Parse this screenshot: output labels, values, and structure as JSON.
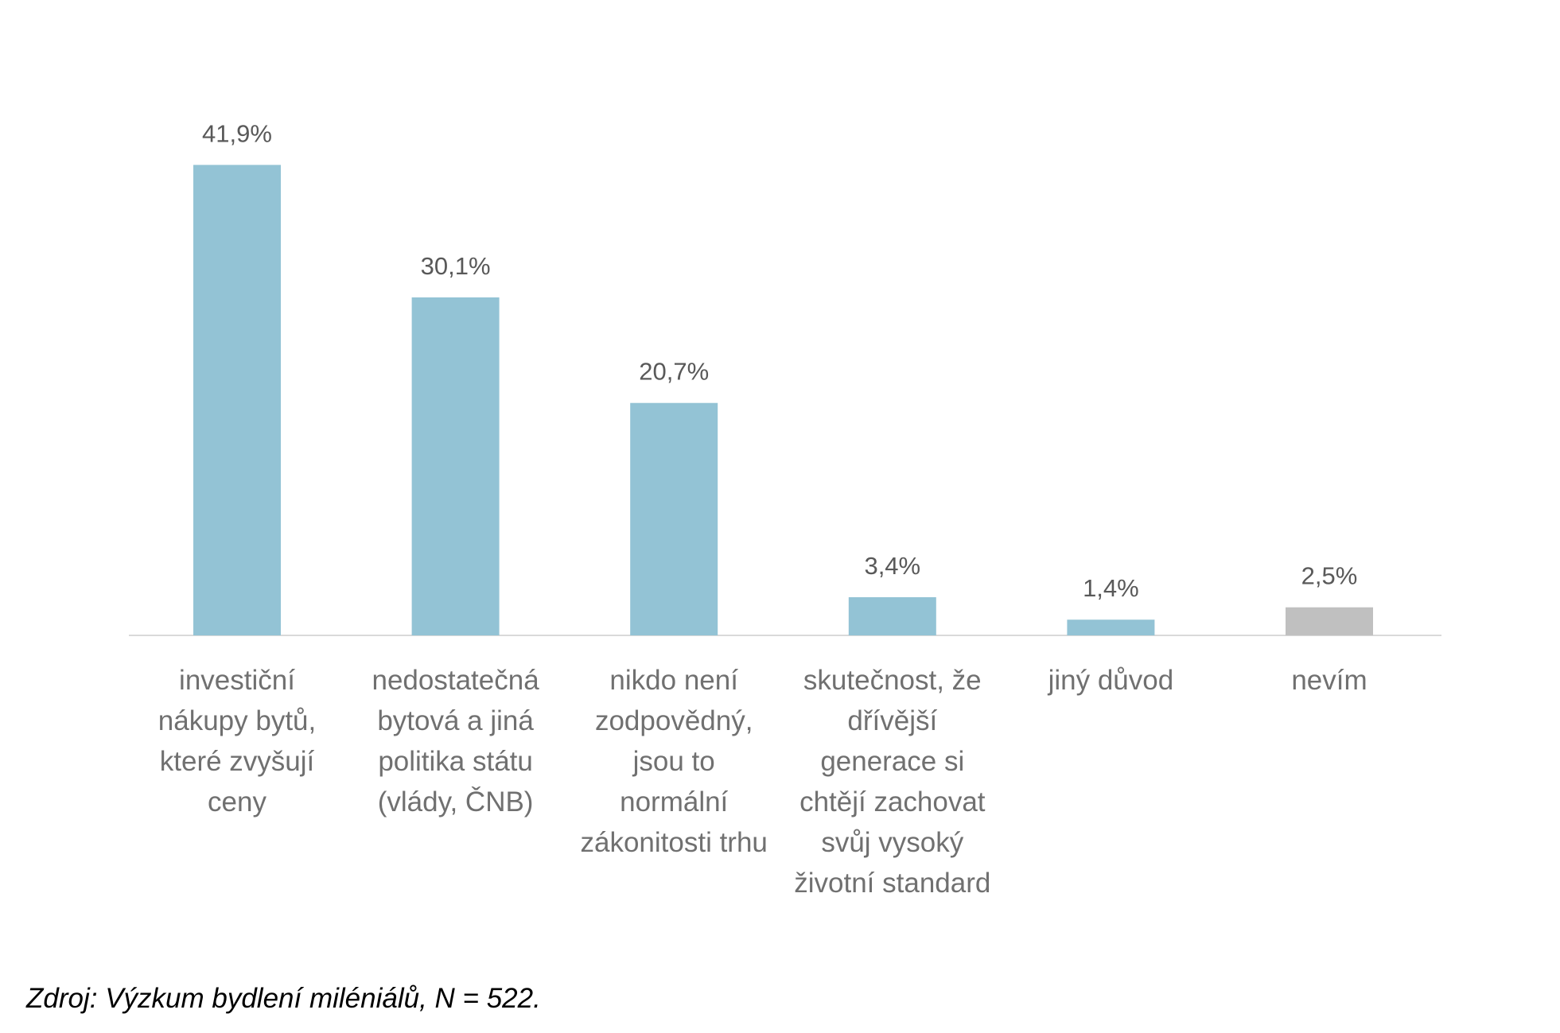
{
  "chart_data": {
    "type": "bar",
    "categories": [
      [
        "investiční",
        "nákupy bytů,",
        "které zvyšují",
        "ceny"
      ],
      [
        "nedostatečná",
        "bytová a jiná",
        "politika státu",
        "(vlády, ČNB)"
      ],
      [
        "nikdo není",
        "zodpovědný,",
        "jsou to",
        "normální",
        "zákonitosti trhu"
      ],
      [
        "skutečnost, že",
        "dřívější",
        "generace si",
        "chtějí zachovat",
        "svůj vysoký",
        "životní standard"
      ],
      [
        "jiný důvod"
      ],
      [
        "nevím"
      ]
    ],
    "values": [
      41.9,
      30.1,
      20.7,
      3.4,
      1.4,
      2.5
    ],
    "value_labels": [
      "41,9%",
      "30,1%",
      "20,7%",
      "3,4%",
      "1,4%",
      "2,5%"
    ],
    "colors": [
      "#93c3d5",
      "#93c3d5",
      "#93c3d5",
      "#93c3d5",
      "#93c3d5",
      "#c0c0c0"
    ],
    "ylim": [
      0,
      45
    ],
    "grid": false,
    "legend": "none",
    "title": "",
    "xlabel": "",
    "ylabel": ""
  },
  "source": "Zdroj: Výzkum bydlení miléniálů, N = 522."
}
